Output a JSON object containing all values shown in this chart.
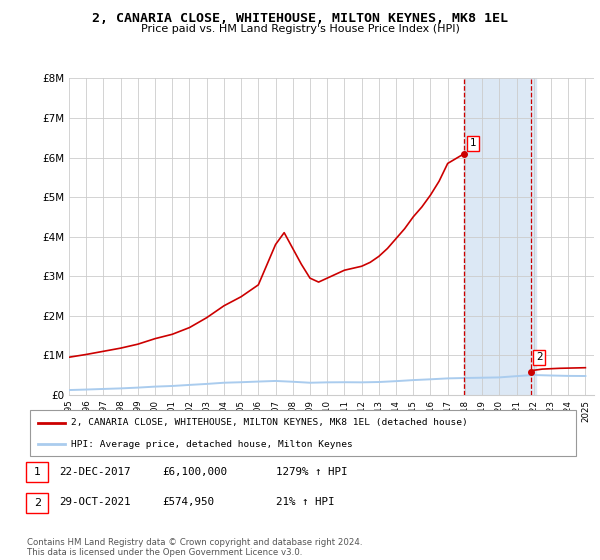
{
  "title": "2, CANARIA CLOSE, WHITEHOUSE, MILTON KEYNES, MK8 1EL",
  "subtitle": "Price paid vs. HM Land Registry's House Price Index (HPI)",
  "background_color": "#ffffff",
  "grid_color": "#cccccc",
  "hpi_color": "#aaccee",
  "price_color": "#cc0000",
  "highlight_color": "#dce8f5",
  "ylim": [
    0,
    8000000
  ],
  "ytick_labels": [
    "£0",
    "£1M",
    "£2M",
    "£3M",
    "£4M",
    "£5M",
    "£6M",
    "£7M",
    "£8M"
  ],
  "ytick_values": [
    0,
    1000000,
    2000000,
    3000000,
    4000000,
    5000000,
    6000000,
    7000000,
    8000000
  ],
  "sale1_x": 2017.97,
  "sale1_y": 6100000,
  "sale2_x": 2021.83,
  "sale2_y": 574950,
  "legend_line1": "2, CANARIA CLOSE, WHITEHOUSE, MILTON KEYNES, MK8 1EL (detached house)",
  "legend_line2": "HPI: Average price, detached house, Milton Keynes",
  "table_row1": [
    "1",
    "22-DEC-2017",
    "£6,100,000",
    "1279% ↑ HPI"
  ],
  "table_row2": [
    "2",
    "29-OCT-2021",
    "£574,950",
    "21% ↑ HPI"
  ],
  "footer": "Contains HM Land Registry data © Crown copyright and database right 2024.\nThis data is licensed under the Open Government Licence v3.0.",
  "hpi_x": [
    1995,
    1996,
    1997,
    1998,
    1999,
    2000,
    2001,
    2002,
    2003,
    2004,
    2005,
    2006,
    2007,
    2008,
    2009,
    2010,
    2011,
    2012,
    2013,
    2014,
    2015,
    2016,
    2017,
    2018,
    2019,
    2020,
    2021,
    2022,
    2023,
    2024,
    2025
  ],
  "hpi_y": [
    120000,
    133000,
    148000,
    162000,
    182000,
    207000,
    223000,
    250000,
    275000,
    305000,
    318000,
    335000,
    350000,
    330000,
    305000,
    315000,
    318000,
    315000,
    323000,
    345000,
    372000,
    392000,
    415000,
    425000,
    432000,
    440000,
    472000,
    500000,
    488000,
    478000,
    475000
  ],
  "price_x": [
    1995,
    1996,
    1997,
    1998,
    1999,
    2000,
    2001,
    2002,
    2003,
    2004,
    2005,
    2006,
    2007,
    2007.5,
    2008,
    2008.5,
    2009,
    2009.5,
    2010,
    2010.5,
    2011,
    2011.5,
    2012,
    2012.5,
    2013,
    2013.5,
    2014,
    2014.5,
    2015,
    2015.5,
    2016,
    2016.5,
    2017,
    2017.97,
    2021.83,
    2022,
    2022.5,
    2023,
    2023.5,
    2024,
    2024.5,
    2025
  ],
  "price_y": [
    950000,
    1020000,
    1100000,
    1180000,
    1280000,
    1420000,
    1530000,
    1700000,
    1950000,
    2250000,
    2480000,
    2780000,
    3800000,
    4100000,
    3700000,
    3300000,
    2950000,
    2850000,
    2950000,
    3050000,
    3150000,
    3200000,
    3250000,
    3350000,
    3500000,
    3700000,
    3950000,
    4200000,
    4500000,
    4750000,
    5050000,
    5400000,
    5850000,
    6100000,
    574950,
    620000,
    650000,
    660000,
    670000,
    675000,
    680000,
    685000
  ],
  "xmin": 1995,
  "xmax": 2025.5
}
